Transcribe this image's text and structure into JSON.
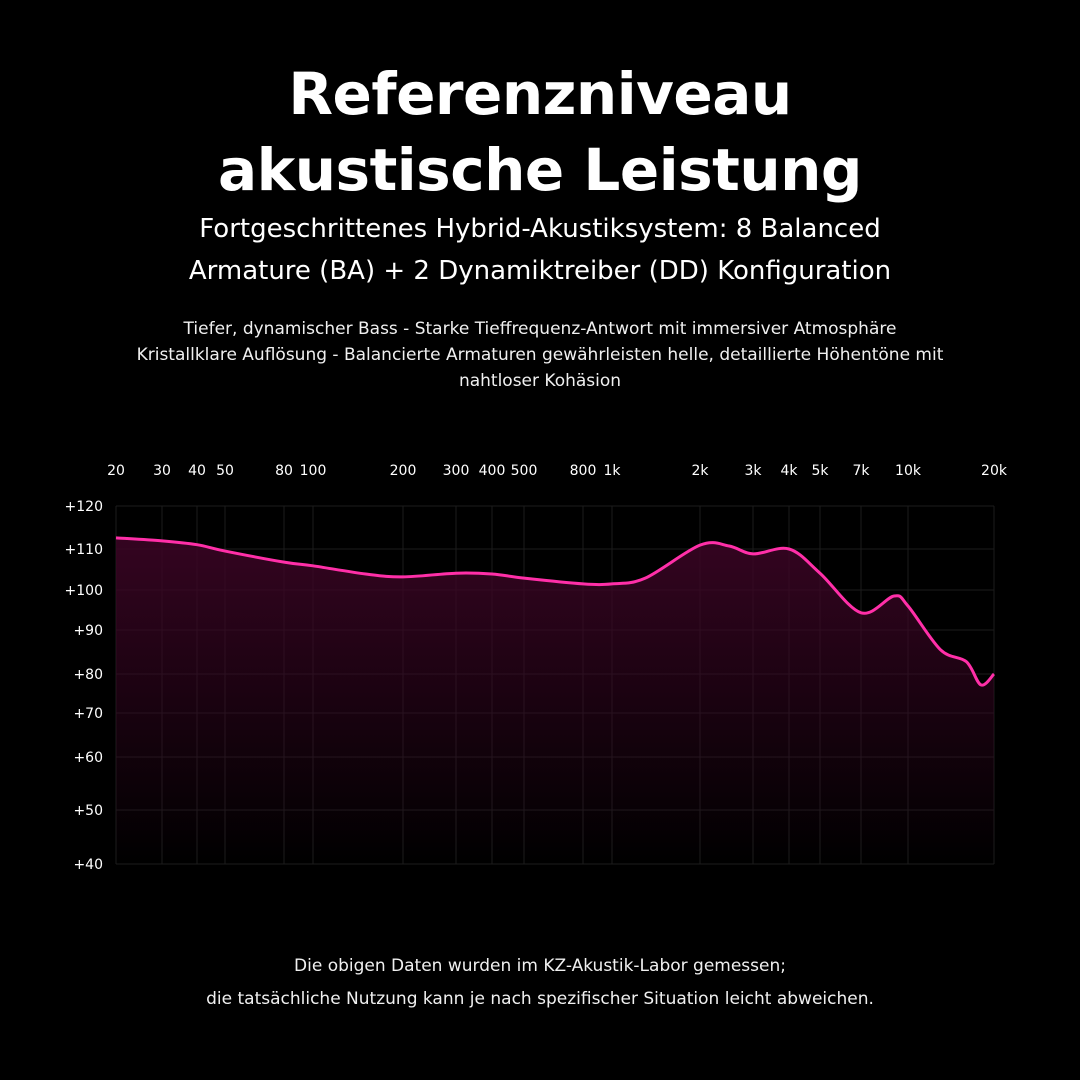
{
  "header": {
    "title_lines": [
      "Referenzniveau",
      "akustische Leistung"
    ],
    "subtitle_lines": [
      "Fortgeschrittenes Hybrid-Akustiksystem: 8 Balanced",
      "Armature (BA) + 2 Dynamiktreiber (DD) Konfiguration"
    ],
    "description_lines": [
      "Tiefer, dynamischer Bass - Starke Tieffrequenz-Antwort mit immersiver Atmosphäre",
      "Kristallklare Auflösung - Balancierte Armaturen gewährleisten helle, detaillierte Höhentöne mit",
      "nahtloser Kohäsion"
    ]
  },
  "footnote_lines": [
    "Die obigen Daten wurden im KZ-Akustik-Labor gemessen;",
    "die tatsächliche Nutzung kann je nach spezifischer Situation leicht abweichen."
  ],
  "chart_data": {
    "type": "area",
    "title": "",
    "xlabel": "",
    "ylabel": "",
    "x_scale": "log",
    "xlim": [
      20,
      20000
    ],
    "ylim": [
      40,
      120
    ],
    "grid": true,
    "line_color": "#ff2fa8",
    "fill_color": "#3a0524",
    "x_ticks": [
      20,
      30,
      40,
      50,
      80,
      100,
      200,
      300,
      400,
      500,
      800,
      1000,
      2000,
      3000,
      4000,
      5000,
      7000,
      10000,
      20000
    ],
    "x_tick_labels": [
      "20",
      "30",
      "40",
      "50",
      "80",
      "100",
      "200",
      "300",
      "400",
      "500",
      "800",
      "1k",
      "2k",
      "3k",
      "4k",
      "5k",
      "7k",
      "10k",
      "20k"
    ],
    "y_ticks": [
      120,
      110,
      100,
      90,
      80,
      70,
      60,
      50,
      40
    ],
    "y_tick_labels": [
      "+120",
      "+110",
      "+100",
      "+90",
      "+80",
      "+70",
      "+60",
      "+50",
      "+40"
    ],
    "series": [
      {
        "x": [
          20,
          30,
          40,
          50,
          80,
          100,
          150,
          200,
          300,
          400,
          500,
          800,
          1000,
          1300,
          2000,
          2500,
          3000,
          4000,
          5000,
          7000,
          9000,
          10000,
          13000,
          16000,
          18000,
          20000
        ],
        "y": [
          112.6,
          111.9,
          111,
          109.5,
          106.8,
          105.9,
          103.9,
          103.2,
          104.1,
          103.9,
          102.9,
          101.5,
          101.5,
          102.9,
          110.9,
          110.7,
          108.8,
          110,
          104.1,
          94.3,
          98.5,
          96,
          85.5,
          82.8,
          77.2,
          80
        ]
      }
    ]
  }
}
